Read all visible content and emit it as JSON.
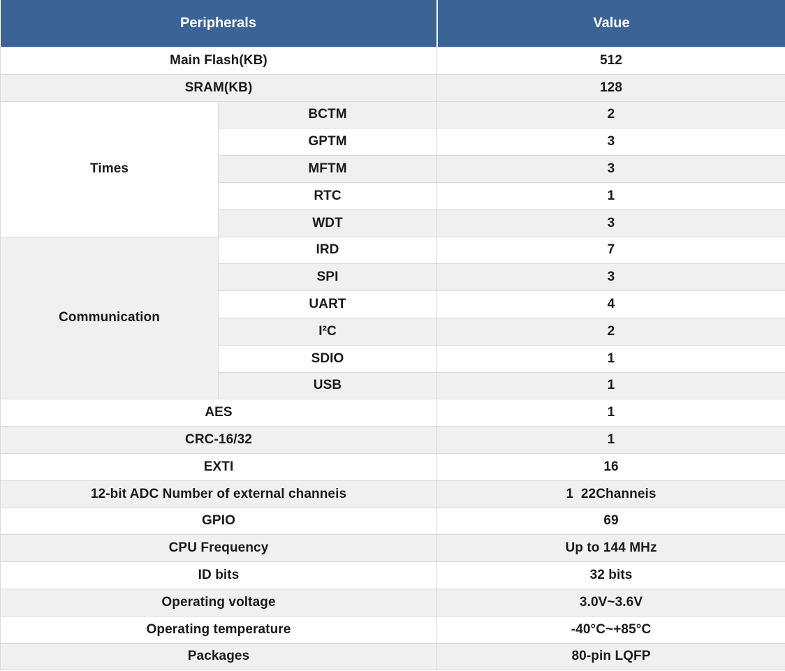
{
  "colors": {
    "header_bg": "#3b6396",
    "header_text": "#ffffff",
    "shade_bg": "#f0f0f0",
    "border": "#d9d9d9",
    "text": "#1a1a1a"
  },
  "chart_data": {
    "type": "table",
    "columns": [
      "Peripherals",
      "Value"
    ],
    "rows_top": [
      {
        "label": "Main Flash(KB)",
        "value": "512"
      },
      {
        "label": "SRAM(KB)",
        "value": "128"
      }
    ],
    "times_group": {
      "label": "Times",
      "items": [
        {
          "name": "BCTM",
          "value": "2"
        },
        {
          "name": "GPTM",
          "value": "3"
        },
        {
          "name": "MFTM",
          "value": "3"
        },
        {
          "name": "RTC",
          "value": "1"
        },
        {
          "name": "WDT",
          "value": "3"
        }
      ]
    },
    "communication_group": {
      "label": "Communication",
      "items": [
        {
          "name": "IRD",
          "value": "7"
        },
        {
          "name": "SPI",
          "value": "3"
        },
        {
          "name": "UART",
          "value": "4"
        },
        {
          "name": "I²C",
          "value": "2"
        },
        {
          "name": "SDIO",
          "value": "1"
        },
        {
          "name": "USB",
          "value": "1"
        }
      ]
    },
    "rows_bottom": [
      {
        "label": "AES",
        "value": "1"
      },
      {
        "label": "CRC-16/32",
        "value": "1"
      },
      {
        "label": "EXTI",
        "value": "16"
      },
      {
        "label": "12-bit ADC Number of external channeis",
        "value": "1  22Channeis"
      },
      {
        "label": "GPIO",
        "value": "69"
      },
      {
        "label": "CPU Frequency",
        "value": "Up to 144 MHz"
      },
      {
        "label": "ID bits",
        "value": "32 bits"
      },
      {
        "label": "Operating voltage",
        "value": "3.0V~3.6V"
      },
      {
        "label": "Operating temperature",
        "value": "-40°C~+85°C"
      },
      {
        "label": "Packages",
        "value": "80-pin LQFP"
      }
    ]
  }
}
